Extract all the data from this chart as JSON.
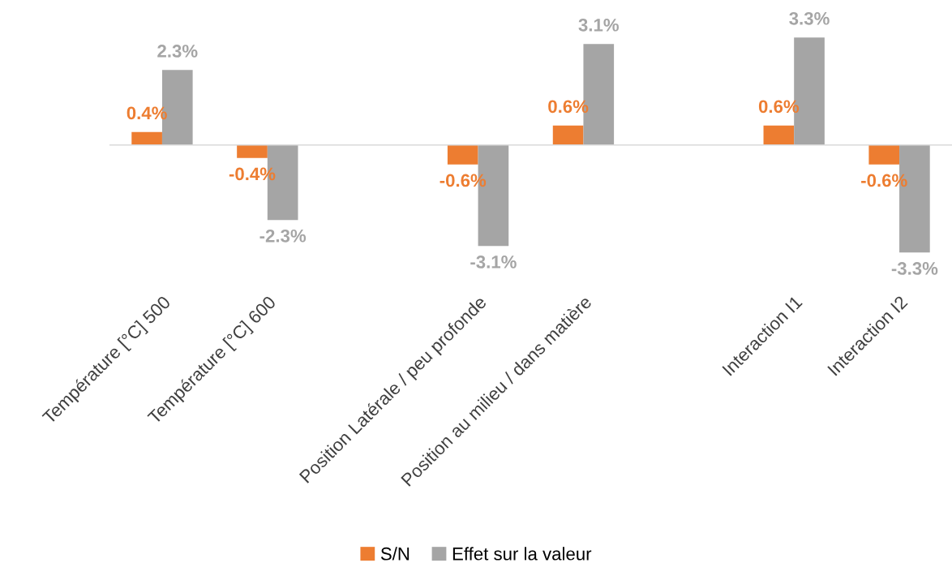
{
  "chart_data": {
    "type": "bar",
    "categories": [
      "Température [°C] 500",
      "Température [°C] 600",
      null,
      "Position Latérale / peu profonde",
      "Position au milieu / dans matière",
      null,
      "Interaction I1",
      "Interaction I2"
    ],
    "series": [
      {
        "name": "S/N",
        "color": "#ed7d31",
        "values": [
          0.4,
          -0.4,
          null,
          -0.6,
          0.6,
          null,
          0.6,
          -0.6
        ],
        "value_labels": [
          "0.4%",
          "-0.4%",
          null,
          "-0.6%",
          "0.6%",
          null,
          "0.6%",
          "-0.6%"
        ]
      },
      {
        "name": "Effet sur la valeur",
        "color": "#a5a5a5",
        "values": [
          2.3,
          -2.3,
          null,
          -3.1,
          3.1,
          null,
          3.3,
          -3.3
        ],
        "value_labels": [
          "2.3%",
          "-2.3%",
          null,
          "-3.1%",
          "3.1%",
          null,
          "3.3%",
          "-3.3%"
        ]
      }
    ],
    "legend": "bottom",
    "grid": false
  }
}
